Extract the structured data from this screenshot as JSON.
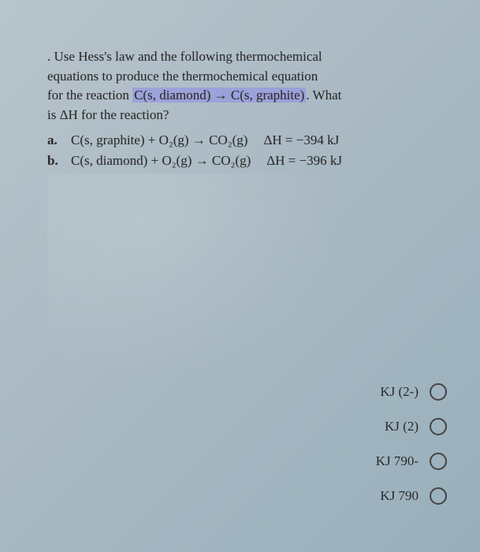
{
  "problem": {
    "lead_dot": ".",
    "line1_a": " Use Hess's law and the following thermochemical",
    "line2": "equations to produce the thermochemical equation",
    "line3_pre": "for the reaction ",
    "line3_hl": "C(s, diamond) → C(s, graphite)",
    "line3_post": ". What",
    "line4": "is ΔH for the reaction?"
  },
  "equations": {
    "a": {
      "label": "a.",
      "body": "C(s, graphite) + O₂(g) → CO₂(g)",
      "dh": "ΔH = −394 kJ"
    },
    "b": {
      "label": "b.",
      "body": "C(s, diamond) + O₂(g) → CO₂(g)",
      "dh": "ΔH = −396 kJ"
    }
  },
  "answers": {
    "opt1": "KJ (2-)",
    "opt2": "KJ (2)",
    "opt3": "KJ 790-",
    "opt4": "KJ 790"
  },
  "colors": {
    "highlight_bg": "#8c8ceb",
    "text": "#2a2a2a",
    "radio_border": "#444444"
  },
  "font": {
    "body_size_pt": 13,
    "family": "serif"
  }
}
